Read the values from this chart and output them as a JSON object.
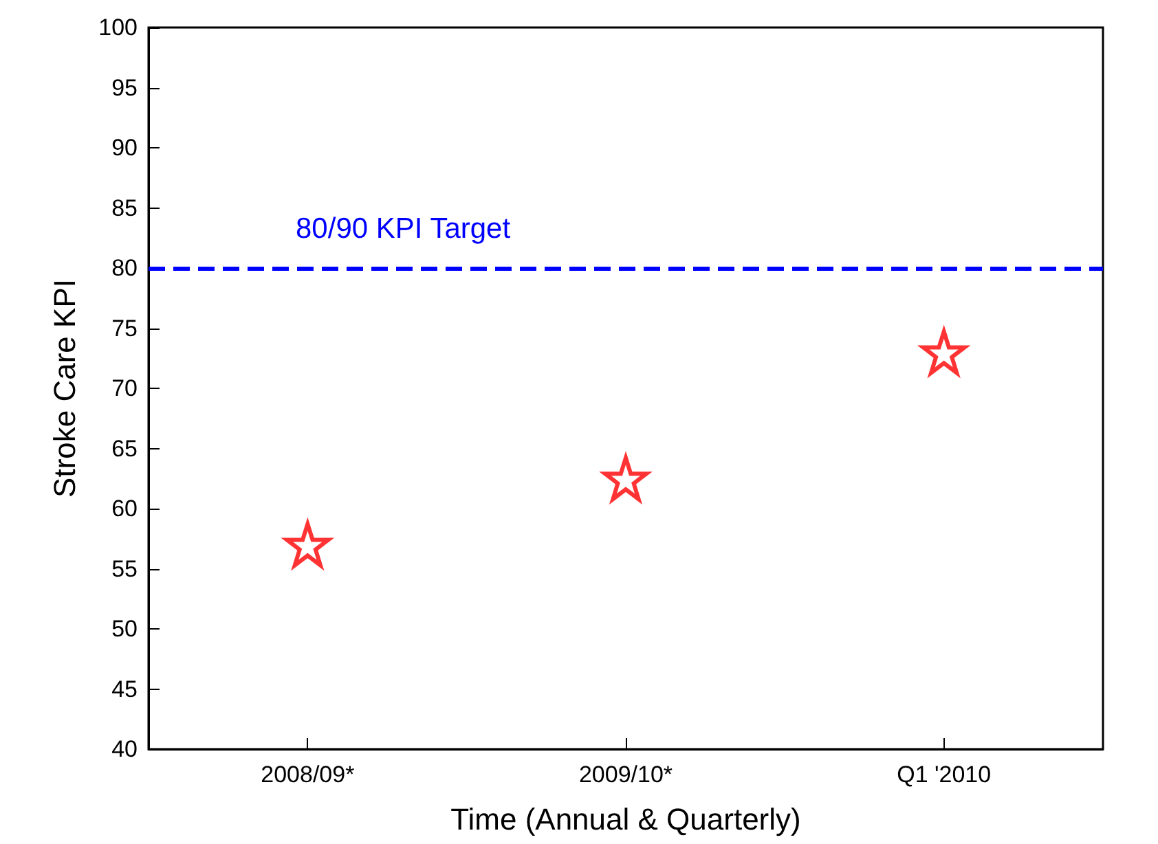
{
  "chart_data": {
    "type": "scatter",
    "xlabel": "Time (Annual & Quarterly)",
    "ylabel": "Stroke Care KPI",
    "categories": [
      "2008/09*",
      "2009/10*",
      "Q1 '2010"
    ],
    "series": [
      {
        "color": "#ff0000",
        "values": [
          57,
          62.5,
          73
        ]
      }
    ],
    "ylim": [
      40,
      100
    ],
    "yticks": [
      40,
      45,
      50,
      55,
      60,
      65,
      70,
      75,
      80,
      85,
      90,
      95,
      100
    ],
    "ref_lines": [
      {
        "axis": "y",
        "value": 80,
        "label": "80/90 KPI Target",
        "color": "#0000ff",
        "line_style": "dashed"
      }
    ],
    "marker": "star",
    "grid": false
  }
}
